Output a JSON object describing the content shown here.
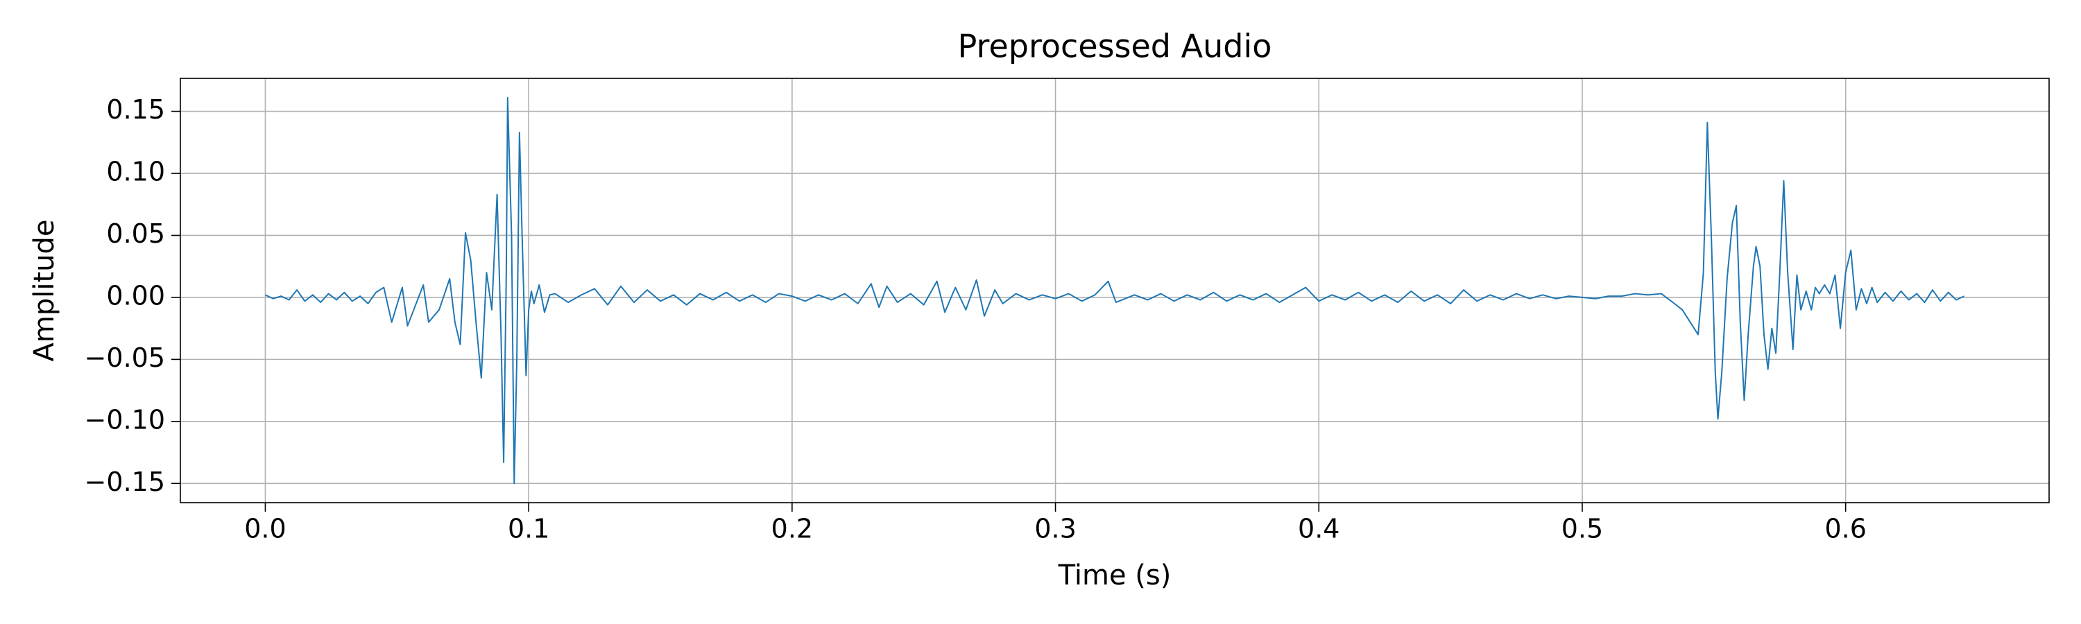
{
  "chart_data": {
    "type": "line",
    "title": "Preprocessed Audio",
    "x_label": "Time (s)",
    "y_label": "Amplitude",
    "color": "#1f77b4",
    "grid": true,
    "xlim": [
      -0.03225,
      0.67725
    ],
    "ylim": [
      -0.1655,
      0.1766
    ],
    "xticks": [
      {
        "value": 0,
        "label": "0.0"
      },
      0.1,
      0.2,
      0.3,
      0.4,
      0.5,
      0.6
    ],
    "yticks": [
      {
        "value": -0.15,
        "label": "−0.15"
      },
      {
        "value": -0.1,
        "label": "−0.10"
      },
      {
        "value": -0.05,
        "label": "−0.05"
      },
      {
        "value": 0,
        "label": "0.00"
      },
      0.05,
      {
        "value": 0.1,
        "label": "0.10"
      },
      0.15
    ],
    "x": [
      0,
      0.003,
      0.006,
      0.009,
      0.012,
      0.015,
      0.018,
      0.021,
      0.024,
      0.027,
      0.03,
      0.033,
      0.036,
      0.039,
      0.042,
      0.045,
      0.048,
      0.052,
      0.054,
      0.06,
      0.062,
      0.066,
      0.07,
      0.072,
      0.074,
      0.076,
      0.078,
      0.08,
      0.082,
      0.084,
      0.086,
      0.088,
      0.0895,
      0.0905,
      0.0915,
      0.092,
      0.0935,
      0.0945,
      0.0955,
      0.0965,
      0.0975,
      0.099,
      0.1,
      0.101,
      0.102,
      0.104,
      0.106,
      0.108,
      0.11,
      0.115,
      0.12,
      0.125,
      0.13,
      0.135,
      0.14,
      0.145,
      0.15,
      0.155,
      0.16,
      0.165,
      0.17,
      0.175,
      0.18,
      0.185,
      0.19,
      0.195,
      0.2,
      0.205,
      0.21,
      0.215,
      0.22,
      0.225,
      0.23,
      0.233,
      0.236,
      0.24,
      0.245,
      0.25,
      0.255,
      0.258,
      0.262,
      0.266,
      0.27,
      0.273,
      0.277,
      0.28,
      0.285,
      0.29,
      0.295,
      0.3,
      0.305,
      0.31,
      0.315,
      0.32,
      0.323,
      0.33,
      0.335,
      0.34,
      0.345,
      0.35,
      0.355,
      0.36,
      0.365,
      0.37,
      0.375,
      0.38,
      0.385,
      0.39,
      0.395,
      0.4,
      0.405,
      0.41,
      0.415,
      0.42,
      0.425,
      0.43,
      0.435,
      0.44,
      0.445,
      0.45,
      0.455,
      0.46,
      0.465,
      0.47,
      0.475,
      0.48,
      0.485,
      0.49,
      0.495,
      0.5,
      0.505,
      0.51,
      0.515,
      0.52,
      0.525,
      0.53,
      0.535,
      0.538,
      0.541,
      0.544,
      0.546,
      0.5475,
      0.549,
      0.5505,
      0.5515,
      0.553,
      0.555,
      0.557,
      0.5585,
      0.56,
      0.5615,
      0.563,
      0.565,
      0.566,
      0.5675,
      0.569,
      0.5705,
      0.572,
      0.5735,
      0.575,
      0.5765,
      0.578,
      0.58,
      0.5815,
      0.583,
      0.585,
      0.587,
      0.5885,
      0.59,
      0.592,
      0.594,
      0.596,
      0.598,
      0.6,
      0.602,
      0.604,
      0.606,
      0.608,
      0.61,
      0.612,
      0.615,
      0.618,
      0.621,
      0.624,
      0.627,
      0.63,
      0.633,
      0.636,
      0.639,
      0.642,
      0.645
    ],
    "values": [
      0.002,
      -0.001,
      0.001,
      -0.002,
      0.006,
      -0.003,
      0.002,
      -0.004,
      0.003,
      -0.002,
      0.004,
      -0.003,
      0.001,
      -0.005,
      0.004,
      0.008,
      -0.02,
      0.008,
      -0.023,
      0.01,
      -0.02,
      -0.01,
      0.015,
      -0.02,
      -0.038,
      0.052,
      0.03,
      -0.02,
      -0.065,
      0.02,
      -0.01,
      0.083,
      -0.03,
      -0.133,
      0.02,
      0.161,
      0.05,
      -0.15,
      -0.05,
      0.133,
      0.05,
      -0.063,
      -0.01,
      0.005,
      -0.005,
      0.01,
      -0.012,
      0.002,
      0.003,
      -0.004,
      0.002,
      0.007,
      -0.006,
      0.009,
      -0.004,
      0.006,
      -0.003,
      0.002,
      -0.006,
      0.003,
      -0.002,
      0.004,
      -0.003,
      0.002,
      -0.004,
      0.003,
      0.001,
      -0.003,
      0.002,
      -0.002,
      0.003,
      -0.005,
      0.011,
      -0.008,
      0.009,
      -0.004,
      0.003,
      -0.006,
      0.013,
      -0.012,
      0.008,
      -0.01,
      0.014,
      -0.015,
      0.006,
      -0.005,
      0.003,
      -0.002,
      0.002,
      -0.001,
      0.003,
      -0.003,
      0.002,
      0.013,
      -0.004,
      0.002,
      -0.002,
      0.003,
      -0.003,
      0.002,
      -0.002,
      0.004,
      -0.003,
      0.002,
      -0.002,
      0.003,
      -0.004,
      0.002,
      0.008,
      -0.003,
      0.002,
      -0.002,
      0.004,
      -0.003,
      0.002,
      -0.004,
      0.005,
      -0.003,
      0.002,
      -0.005,
      0.006,
      -0.003,
      0.002,
      -0.002,
      0.003,
      -0.001,
      0.002,
      -0.001,
      0.001,
      0,
      -0.001,
      0.001,
      0.001,
      0.003,
      0.002,
      0.003,
      -0.005,
      -0.01,
      -0.02,
      -0.03,
      0.02,
      0.141,
      0.05,
      -0.06,
      -0.098,
      -0.06,
      0.015,
      0.06,
      0.074,
      -0.02,
      -0.083,
      -0.03,
      0.025,
      0.041,
      0.025,
      -0.03,
      -0.058,
      -0.025,
      -0.045,
      0.02,
      0.094,
      0.02,
      -0.042,
      0.018,
      -0.01,
      0.005,
      -0.01,
      0.008,
      0.003,
      0.01,
      0.003,
      0.018,
      -0.025,
      0.02,
      0.038,
      -0.01,
      0.007,
      -0.005,
      0.008,
      -0.004,
      0.004,
      -0.003,
      0.005,
      -0.002,
      0.003,
      -0.004,
      0.006,
      -0.003,
      0.004,
      -0.002,
      0.001
    ]
  }
}
